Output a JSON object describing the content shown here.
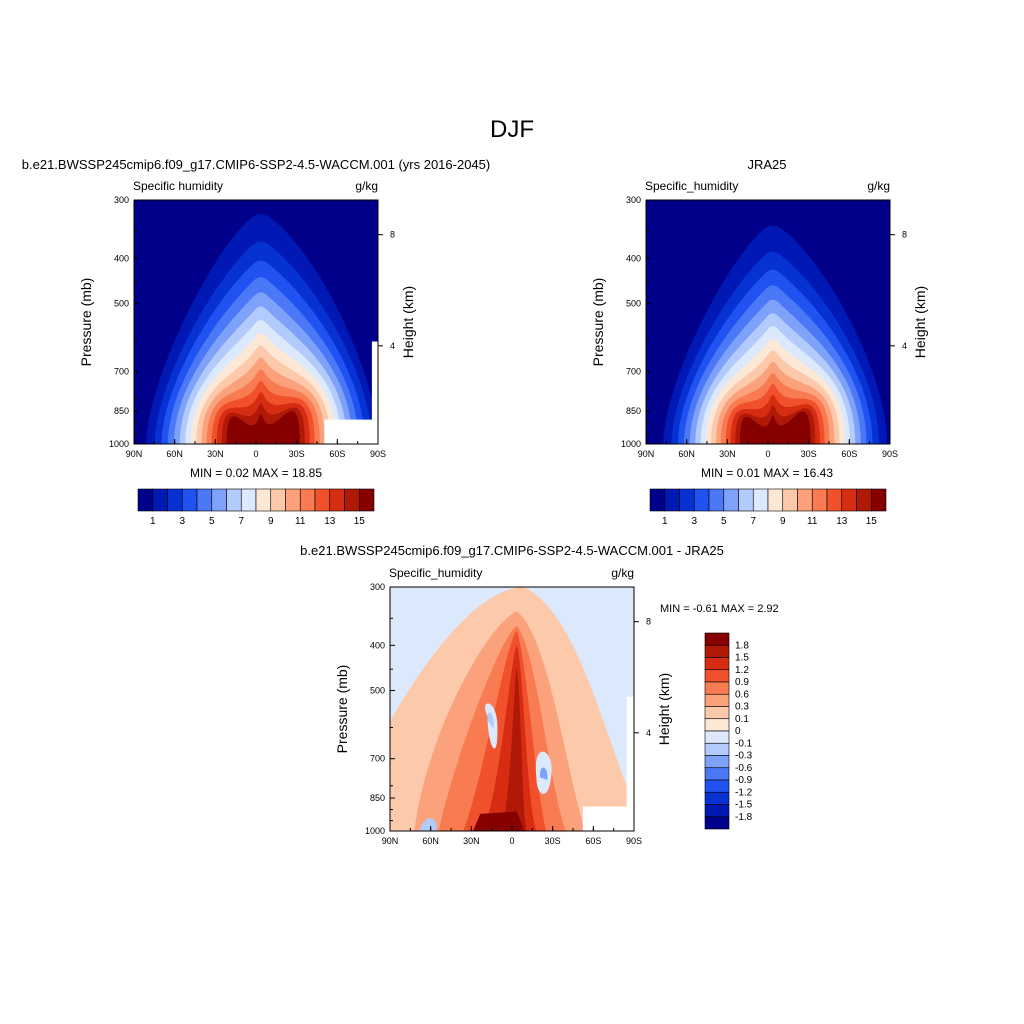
{
  "main_title": "DJF",
  "panels": {
    "model": {
      "title": "b.e21.BWSSP245cmip6.f09_g17.CMIP6-SSP2-4.5-WACCM.001 (yrs 2016-2045)",
      "left_label": "Specific humidity",
      "units": "g/kg",
      "stats": "MIN =   0.02  MAX =  18.85"
    },
    "obs": {
      "title": "JRA25",
      "left_label": "Specific_humidity",
      "units": "g/kg",
      "stats": "MIN =   0.01  MAX =  16.43"
    },
    "diff": {
      "title": "b.e21.BWSSP245cmip6.f09_g17.CMIP6-SSP2-4.5-WACCM.001 - JRA25",
      "left_label": "Specific_humidity",
      "units": "g/kg",
      "stats": "MIN =  -0.61  MAX =   2.92"
    }
  },
  "axes": {
    "ylabel": "Pressure (mb)",
    "y2label": "Height (km)",
    "yticks": [
      "300",
      "400",
      "500",
      "700",
      "850",
      "1000"
    ],
    "y2ticks": [
      "8",
      "4"
    ],
    "xticks": [
      "90N",
      "60N",
      "30N",
      "0",
      "30S",
      "60S",
      "90S"
    ]
  },
  "colorbars": {
    "abs": {
      "labels": [
        "1",
        "3",
        "5",
        "7",
        "9",
        "11",
        "13",
        "15"
      ],
      "colors": [
        "#00008a",
        "#0018b4",
        "#0632d4",
        "#1f52f0",
        "#4a78f6",
        "#7ea2fa",
        "#b2cbfc",
        "#dce9fd",
        "#fde8d6",
        "#fcc9aa",
        "#fba27c",
        "#f87b52",
        "#f0502c",
        "#d62c12",
        "#b01808",
        "#860000"
      ]
    },
    "diff": {
      "labels": [
        "1.8",
        "1.5",
        "1.2",
        "0.9",
        "0.6",
        "0.3",
        "0.1",
        "0",
        "-0.1",
        "-0.3",
        "-0.6",
        "-0.9",
        "-1.2",
        "-1.5",
        "-1.8"
      ],
      "colors": [
        "#860000",
        "#b01808",
        "#d62c12",
        "#f0502c",
        "#f87b52",
        "#fba27c",
        "#fcc9aa",
        "#fde8d6",
        "#dce9fd",
        "#b2cbfc",
        "#7ea2fa",
        "#4a78f6",
        "#1f52f0",
        "#0632d4",
        "#0018b4",
        "#00008a"
      ]
    }
  },
  "chart_data": [
    {
      "type": "heatmap",
      "title": "b.e21.BWSSP245cmip6.f09_g17.CMIP6-SSP2-4.5-WACCM.001 (yrs 2016-2045)",
      "variable": "Specific humidity",
      "units": "g/kg",
      "xlabel": "",
      "ylabel": "Pressure (mb)",
      "y2label": "Height (km)",
      "x": [
        "90N",
        "60N",
        "30N",
        "0",
        "30S",
        "60S",
        "90S"
      ],
      "y_pressure_mb": [
        300,
        400,
        500,
        700,
        850,
        1000
      ],
      "min": 0.02,
      "max": 18.85,
      "levels": [
        1,
        2,
        3,
        4,
        5,
        6,
        7,
        8,
        9,
        10,
        11,
        12,
        13,
        14,
        15
      ],
      "peak_latitude": 0,
      "peak_pressure_mb": 1000,
      "lines": [
        {
          "levels": [
            1,
            2,
            3,
            4,
            5,
            6,
            7,
            8,
            9,
            10,
            11,
            12,
            13,
            14,
            15
          ],
          "values": [
            1,
            2,
            3,
            4,
            5,
            6,
            7,
            8,
            9,
            10,
            11,
            12,
            13,
            14,
            15
          ]
        }
      ]
    },
    {
      "type": "heatmap",
      "title": "JRA25",
      "variable": "Specific_humidity",
      "units": "g/kg",
      "ylabel": "Pressure (mb)",
      "y2label": "Height (km)",
      "x": [
        "90N",
        "60N",
        "30N",
        "0",
        "30S",
        "60S",
        "90S"
      ],
      "y_pressure_mb": [
        300,
        400,
        500,
        700,
        850,
        1000
      ],
      "min": 0.01,
      "max": 16.43,
      "levels": [
        1,
        2,
        3,
        4,
        5,
        6,
        7,
        8,
        9,
        10,
        11,
        12,
        13,
        14,
        15
      ],
      "peak_latitude": 0,
      "peak_pressure_mb": 1000
    },
    {
      "type": "heatmap",
      "title": "b.e21.BWSSP245cmip6.f09_g17.CMIP6-SSP2-4.5-WACCM.001 - JRA25",
      "variable": "Specific_humidity",
      "units": "g/kg",
      "ylabel": "Pressure (mb)",
      "y2label": "Height (km)",
      "x": [
        "90N",
        "60N",
        "30N",
        "0",
        "30S",
        "60S",
        "90S"
      ],
      "y_pressure_mb": [
        300,
        400,
        500,
        700,
        850,
        1000
      ],
      "min": -0.61,
      "max": 2.92,
      "levels": [
        -1.8,
        -1.5,
        -1.2,
        -0.9,
        -0.6,
        -0.3,
        -0.1,
        0,
        0.1,
        0.3,
        0.6,
        0.9,
        1.2,
        1.5,
        1.8
      ],
      "features": [
        {
          "label": "positive maximum",
          "latitude": 0,
          "pressure_mb": 1000
        },
        {
          "label": "positive tower",
          "latitude": 0,
          "pressure_mb": 550
        },
        {
          "label": "negative minimum",
          "latitude": "18N",
          "pressure_mb": 720
        },
        {
          "label": "negative minimum",
          "latitude": "20S",
          "pressure_mb": 850
        }
      ]
    }
  ]
}
